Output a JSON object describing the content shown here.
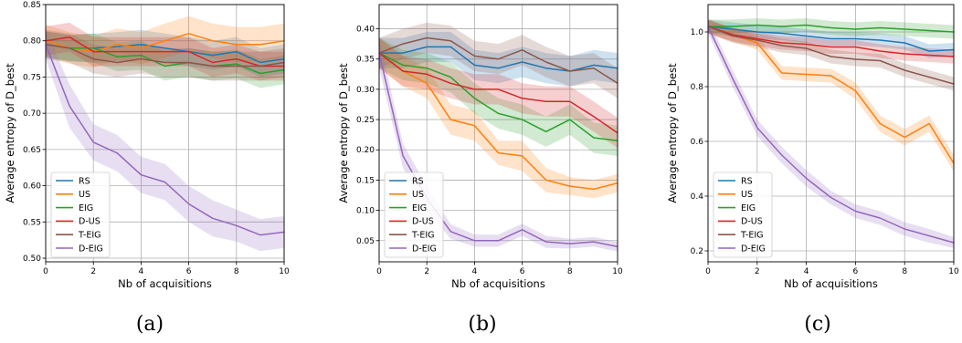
{
  "chart_data": [
    {
      "type": "line",
      "caption": "(a)",
      "xlabel": "Nb of acquisitions",
      "ylabel": "Average entropy of D_best",
      "xlim": [
        0,
        10
      ],
      "ylim": [
        0.495,
        0.85
      ],
      "x_ticks": [
        0,
        2,
        4,
        6,
        8,
        10
      ],
      "y_ticks": [
        0.5,
        0.55,
        0.6,
        0.65,
        0.7,
        0.75,
        0.8,
        0.85
      ],
      "y_tick_labels": [
        "0.50",
        "0.55",
        "0.60",
        "0.65",
        "0.70",
        "0.75",
        "0.80",
        "0.85"
      ],
      "grid": true,
      "legend_position": "lower-left",
      "x": [
        0,
        1,
        2,
        3,
        4,
        5,
        6,
        7,
        8,
        9,
        10
      ],
      "series": [
        {
          "name": "RS",
          "color": "#1f77b4",
          "values": [
            0.795,
            0.79,
            0.79,
            0.792,
            0.795,
            0.79,
            0.785,
            0.78,
            0.785,
            0.77,
            0.775
          ],
          "band": [
            0.018,
            0.018,
            0.02,
            0.02,
            0.02,
            0.02,
            0.02,
            0.02,
            0.02,
            0.02,
            0.02
          ]
        },
        {
          "name": "US",
          "color": "#ff7f0e",
          "values": [
            0.8,
            0.79,
            0.785,
            0.795,
            0.79,
            0.8,
            0.81,
            0.8,
            0.795,
            0.795,
            0.8
          ],
          "band": [
            0.022,
            0.022,
            0.022,
            0.022,
            0.022,
            0.024,
            0.024,
            0.024,
            0.024,
            0.024,
            0.024
          ]
        },
        {
          "name": "EIG",
          "color": "#2ca02c",
          "values": [
            0.795,
            0.79,
            0.79,
            0.778,
            0.78,
            0.765,
            0.77,
            0.765,
            0.768,
            0.755,
            0.76
          ],
          "band": [
            0.018,
            0.018,
            0.02,
            0.02,
            0.02,
            0.02,
            0.02,
            0.02,
            0.02,
            0.02,
            0.02
          ]
        },
        {
          "name": "D-US",
          "color": "#d62728",
          "values": [
            0.8,
            0.805,
            0.785,
            0.785,
            0.785,
            0.785,
            0.785,
            0.77,
            0.775,
            0.765,
            0.765
          ],
          "band": [
            0.02,
            0.02,
            0.02,
            0.02,
            0.02,
            0.02,
            0.02,
            0.02,
            0.02,
            0.02,
            0.02
          ]
        },
        {
          "name": "T-EIG",
          "color": "#8c564b",
          "values": [
            0.795,
            0.79,
            0.775,
            0.77,
            0.775,
            0.77,
            0.77,
            0.765,
            0.765,
            0.765,
            0.77
          ],
          "band": [
            0.02,
            0.02,
            0.02,
            0.02,
            0.02,
            0.02,
            0.02,
            0.02,
            0.02,
            0.02,
            0.02
          ]
        },
        {
          "name": "D-EIG",
          "color": "#9467bd",
          "values": [
            0.795,
            0.71,
            0.66,
            0.645,
            0.615,
            0.605,
            0.575,
            0.555,
            0.545,
            0.532,
            0.536
          ],
          "band": [
            0.02,
            0.03,
            0.025,
            0.025,
            0.025,
            0.025,
            0.025,
            0.025,
            0.022,
            0.022,
            0.022
          ]
        }
      ]
    },
    {
      "type": "line",
      "caption": "(b)",
      "xlabel": "Nb of acquisitions",
      "ylabel": "Average entropy of D_best",
      "xlim": [
        0,
        10
      ],
      "ylim": [
        0.015,
        0.44
      ],
      "x_ticks": [
        0,
        2,
        4,
        6,
        8,
        10
      ],
      "y_ticks": [
        0.05,
        0.1,
        0.15,
        0.2,
        0.25,
        0.3,
        0.35,
        0.4
      ],
      "y_tick_labels": [
        "0.05",
        "0.10",
        "0.15",
        "0.20",
        "0.25",
        "0.30",
        "0.35",
        "0.40"
      ],
      "grid": true,
      "legend_position": "lower-left",
      "x": [
        0,
        1,
        2,
        3,
        4,
        5,
        6,
        7,
        8,
        9,
        10
      ],
      "series": [
        {
          "name": "RS",
          "color": "#1f77b4",
          "values": [
            0.36,
            0.36,
            0.37,
            0.37,
            0.34,
            0.335,
            0.345,
            0.335,
            0.33,
            0.34,
            0.335
          ],
          "band": [
            0.025,
            0.025,
            0.025,
            0.025,
            0.025,
            0.025,
            0.025,
            0.025,
            0.025,
            0.025,
            0.025
          ]
        },
        {
          "name": "US",
          "color": "#ff7f0e",
          "values": [
            0.36,
            0.33,
            0.31,
            0.25,
            0.24,
            0.195,
            0.19,
            0.15,
            0.14,
            0.135,
            0.145
          ],
          "band": [
            0.025,
            0.025,
            0.025,
            0.025,
            0.025,
            0.02,
            0.025,
            0.02,
            0.015,
            0.015,
            0.015
          ]
        },
        {
          "name": "EIG",
          "color": "#2ca02c",
          "values": [
            0.36,
            0.34,
            0.335,
            0.32,
            0.285,
            0.26,
            0.25,
            0.23,
            0.25,
            0.22,
            0.215
          ],
          "band": [
            0.025,
            0.025,
            0.025,
            0.025,
            0.025,
            0.025,
            0.025,
            0.025,
            0.025,
            0.025,
            0.025
          ]
        },
        {
          "name": "D-US",
          "color": "#d62728",
          "values": [
            0.36,
            0.33,
            0.325,
            0.31,
            0.3,
            0.3,
            0.285,
            0.28,
            0.28,
            0.255,
            0.228
          ],
          "band": [
            0.025,
            0.025,
            0.025,
            0.025,
            0.025,
            0.025,
            0.025,
            0.025,
            0.025,
            0.025,
            0.025
          ]
        },
        {
          "name": "T-EIG",
          "color": "#8c564b",
          "values": [
            0.36,
            0.375,
            0.385,
            0.38,
            0.355,
            0.35,
            0.365,
            0.345,
            0.33,
            0.335,
            0.31
          ],
          "band": [
            0.025,
            0.025,
            0.025,
            0.025,
            0.025,
            0.025,
            0.025,
            0.025,
            0.025,
            0.025,
            0.025
          ]
        },
        {
          "name": "D-EIG",
          "color": "#9467bd",
          "values": [
            0.36,
            0.19,
            0.12,
            0.065,
            0.05,
            0.05,
            0.068,
            0.048,
            0.045,
            0.048,
            0.04
          ],
          "band": [
            0.025,
            0.02,
            0.02,
            0.012,
            0.01,
            0.01,
            0.01,
            0.01,
            0.008,
            0.008,
            0.008
          ]
        }
      ]
    },
    {
      "type": "line",
      "caption": "(c)",
      "xlabel": "Nb of acquisitions",
      "ylabel": "Average entropy of D_best",
      "xlim": [
        0,
        10
      ],
      "ylim": [
        0.16,
        1.1
      ],
      "x_ticks": [
        0,
        2,
        4,
        6,
        8,
        10
      ],
      "y_ticks": [
        0.2,
        0.4,
        0.6,
        0.8,
        1.0
      ],
      "y_tick_labels": [
        "0.2",
        "0.4",
        "0.6",
        "0.8",
        "1.0"
      ],
      "grid": true,
      "legend_position": "lower-left",
      "x": [
        0,
        1,
        2,
        3,
        4,
        5,
        6,
        7,
        8,
        9,
        10
      ],
      "series": [
        {
          "name": "RS",
          "color": "#1f77b4",
          "values": [
            1.02,
            1.01,
            1.0,
            0.995,
            0.985,
            0.975,
            0.975,
            0.97,
            0.96,
            0.93,
            0.935
          ],
          "band": [
            0.025,
            0.025,
            0.025,
            0.025,
            0.025,
            0.025,
            0.025,
            0.025,
            0.025,
            0.025,
            0.025
          ]
        },
        {
          "name": "US",
          "color": "#ff7f0e",
          "values": [
            1.02,
            0.99,
            0.96,
            0.85,
            0.845,
            0.84,
            0.785,
            0.665,
            0.615,
            0.665,
            0.52
          ],
          "band": [
            0.025,
            0.025,
            0.025,
            0.025,
            0.025,
            0.025,
            0.03,
            0.03,
            0.03,
            0.03,
            0.03
          ]
        },
        {
          "name": "EIG",
          "color": "#2ca02c",
          "values": [
            1.02,
            1.02,
            1.025,
            1.02,
            1.025,
            1.015,
            1.01,
            1.015,
            1.01,
            1.005,
            1.0
          ],
          "band": [
            0.025,
            0.025,
            0.025,
            0.025,
            0.025,
            0.025,
            0.025,
            0.025,
            0.025,
            0.025,
            0.025
          ]
        },
        {
          "name": "D-US",
          "color": "#d62728",
          "values": [
            1.02,
            0.99,
            0.975,
            0.96,
            0.955,
            0.945,
            0.945,
            0.93,
            0.92,
            0.915,
            0.91
          ],
          "band": [
            0.025,
            0.025,
            0.025,
            0.025,
            0.025,
            0.025,
            0.025,
            0.025,
            0.025,
            0.025,
            0.025
          ]
        },
        {
          "name": "T-EIG",
          "color": "#8c564b",
          "values": [
            1.02,
            0.985,
            0.97,
            0.95,
            0.94,
            0.91,
            0.9,
            0.895,
            0.86,
            0.835,
            0.81
          ],
          "band": [
            0.025,
            0.025,
            0.025,
            0.025,
            0.025,
            0.025,
            0.025,
            0.025,
            0.025,
            0.025,
            0.025
          ]
        },
        {
          "name": "D-EIG",
          "color": "#9467bd",
          "values": [
            1.02,
            0.83,
            0.65,
            0.55,
            0.465,
            0.395,
            0.345,
            0.32,
            0.28,
            0.255,
            0.23
          ],
          "band": [
            0.025,
            0.03,
            0.03,
            0.03,
            0.03,
            0.025,
            0.025,
            0.025,
            0.025,
            0.025,
            0.02
          ]
        }
      ]
    }
  ]
}
